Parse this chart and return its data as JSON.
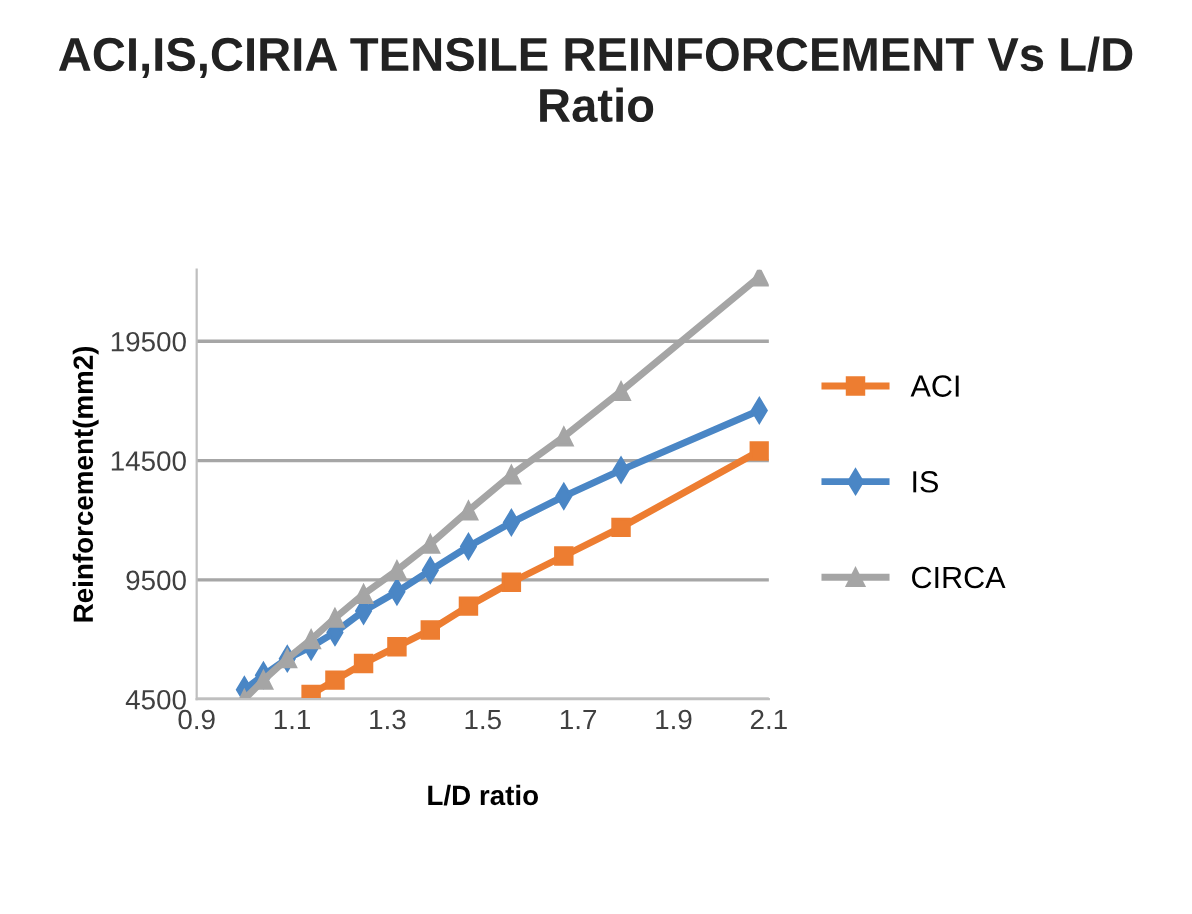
{
  "chart_data": {
    "type": "line",
    "title": "ACI,IS,CIRIA TENSILE REINFORCEMENT Vs L/D\nRatio",
    "xlabel": "L/D ratio",
    "ylabel": "Reinforcement(mm2)",
    "x": [
      1.0,
      1.04,
      1.09,
      1.14,
      1.19,
      1.25,
      1.32,
      1.39,
      1.47,
      1.56,
      1.67,
      1.79,
      2.08
    ],
    "series": [
      {
        "name": "ACI",
        "color": "#ed7d31",
        "marker": "square",
        "values": [
          null,
          null,
          null,
          4700,
          5300,
          6000,
          6700,
          7400,
          8400,
          9400,
          10500,
          11700,
          14900
        ]
      },
      {
        "name": "IS",
        "color": "#4a86c5",
        "marker": "diamond",
        "values": [
          4900,
          5500,
          6200,
          6700,
          7300,
          8200,
          9000,
          9900,
          10900,
          11900,
          13000,
          14100,
          16600
        ]
      },
      {
        "name": "CIRCA",
        "color": "#a5a5a5",
        "marker": "triangle",
        "values": [
          4500,
          5300,
          6200,
          7000,
          7900,
          8900,
          9900,
          11000,
          12400,
          13900,
          15500,
          17400,
          22200
        ]
      }
    ],
    "xlim": [
      0.9,
      2.1
    ],
    "xticks": [
      0.9,
      1.1,
      1.3,
      1.5,
      1.7,
      1.9,
      2.1
    ],
    "ylim": [
      4500,
      22500
    ],
    "yticks": [
      4500,
      9500,
      14500,
      19500
    ],
    "grid": "y",
    "legend": "right",
    "line_style": "solid"
  }
}
